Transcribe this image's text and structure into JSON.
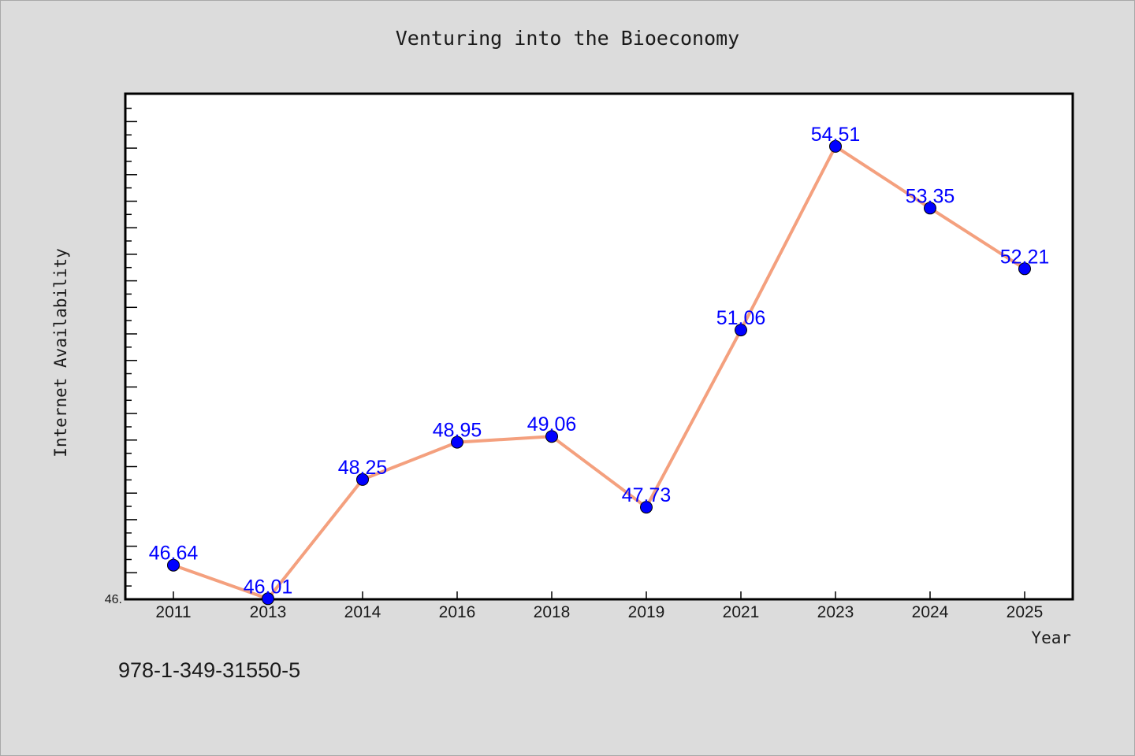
{
  "chart_data": {
    "type": "line",
    "title": "Venturing into the Bioeconomy",
    "xlabel": "Year",
    "ylabel": "Internet Availability",
    "categories": [
      "2011",
      "2013",
      "2014",
      "2016",
      "2018",
      "2019",
      "2021",
      "2023",
      "2024",
      "2025"
    ],
    "values": [
      46.64,
      46.01,
      48.25,
      48.95,
      49.06,
      47.73,
      51.06,
      54.51,
      53.35,
      52.21
    ],
    "data_labels": [
      "46.64",
      "46.01",
      "48.25",
      "48.95",
      "49.06",
      "47.73",
      "51.06",
      "54.51",
      "53.35",
      "52.21"
    ],
    "y_tick_label": "46.",
    "ylim": [
      46.0,
      55.5
    ],
    "grid": false,
    "line_color": "#f4a07e",
    "marker_color": "#0000ff",
    "label_color": "#0000ff"
  },
  "footer": {
    "code": "978-1-349-31550-5"
  }
}
